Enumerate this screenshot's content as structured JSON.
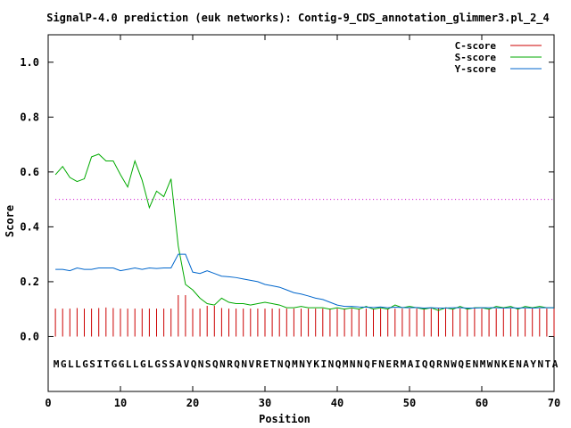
{
  "chart_data": {
    "type": "line",
    "title": "SignalP-4.0 prediction (euk networks): Contig-9_CDS_annotation_glimmer3.pl_2_4",
    "xlabel": "Position",
    "ylabel": "Score",
    "xlim": [
      0,
      70
    ],
    "ylim": [
      -0.2,
      1.1
    ],
    "xticks": [
      0,
      10,
      20,
      30,
      40,
      50,
      60,
      70
    ],
    "yticks": [
      0.0,
      0.2,
      0.4,
      0.6,
      0.8,
      1.0
    ],
    "xtick_labels": [
      "0",
      "10",
      "20",
      "30",
      "40",
      "50",
      "60",
      "70"
    ],
    "ytick_labels": [
      "0.0",
      "0.2",
      "0.4",
      "0.6",
      "0.8",
      "1.0"
    ],
    "threshold": 0.5,
    "threshold_color": "#cc00cc",
    "legend_position": "top-right",
    "sequence": "MGLLGSITGGLLGLGSSAVQNSQNRQNVRETNQMNYKINQMNNQFNERMAIQQRNWQENMWNKENAYNTA",
    "positions": [
      1,
      2,
      3,
      4,
      5,
      6,
      7,
      8,
      9,
      10,
      11,
      12,
      13,
      14,
      15,
      16,
      17,
      18,
      19,
      20,
      21,
      22,
      23,
      24,
      25,
      26,
      27,
      28,
      29,
      30,
      31,
      32,
      33,
      34,
      35,
      36,
      37,
      38,
      39,
      40,
      41,
      42,
      43,
      44,
      45,
      46,
      47,
      48,
      49,
      50,
      51,
      52,
      53,
      54,
      55,
      56,
      57,
      58,
      59,
      60,
      61,
      62,
      63,
      64,
      65,
      66,
      67,
      68,
      69,
      70
    ],
    "series": [
      {
        "name": "C-score",
        "style": "impulses",
        "color": "#cc0000",
        "values": [
          0.102,
          0.102,
          0.102,
          0.104,
          0.102,
          0.102,
          0.104,
          0.106,
          0.104,
          0.102,
          0.102,
          0.102,
          0.102,
          0.102,
          0.102,
          0.102,
          0.102,
          0.151,
          0.151,
          0.102,
          0.102,
          0.112,
          0.112,
          0.104,
          0.102,
          0.102,
          0.102,
          0.102,
          0.102,
          0.102,
          0.102,
          0.102,
          0.102,
          0.102,
          0.102,
          0.102,
          0.102,
          0.102,
          0.102,
          0.102,
          0.102,
          0.102,
          0.102,
          0.102,
          0.102,
          0.102,
          0.102,
          0.102,
          0.102,
          0.102,
          0.102,
          0.102,
          0.102,
          0.102,
          0.102,
          0.102,
          0.102,
          0.102,
          0.102,
          0.102,
          0.102,
          0.102,
          0.102,
          0.102,
          0.102,
          0.102,
          0.102,
          0.102,
          0.102,
          0.102
        ]
      },
      {
        "name": "S-score",
        "style": "line",
        "color": "#00aa00",
        "values": [
          0.59,
          0.62,
          0.58,
          0.565,
          0.575,
          0.655,
          0.665,
          0.64,
          0.64,
          0.59,
          0.545,
          0.64,
          0.57,
          0.47,
          0.53,
          0.51,
          0.575,
          0.33,
          0.19,
          0.17,
          0.14,
          0.12,
          0.115,
          0.14,
          0.125,
          0.12,
          0.12,
          0.115,
          0.12,
          0.125,
          0.12,
          0.115,
          0.105,
          0.105,
          0.11,
          0.105,
          0.105,
          0.105,
          0.1,
          0.105,
          0.1,
          0.105,
          0.1,
          0.11,
          0.1,
          0.105,
          0.1,
          0.115,
          0.105,
          0.11,
          0.105,
          0.1,
          0.105,
          0.095,
          0.105,
          0.1,
          0.11,
          0.1,
          0.105,
          0.105,
          0.1,
          0.11,
          0.105,
          0.11,
          0.1,
          0.11,
          0.105,
          0.11,
          0.105,
          0.105
        ]
      },
      {
        "name": "Y-score",
        "style": "line",
        "color": "#0066cc",
        "values": [
          0.245,
          0.245,
          0.24,
          0.25,
          0.245,
          0.245,
          0.25,
          0.25,
          0.25,
          0.24,
          0.245,
          0.25,
          0.245,
          0.25,
          0.248,
          0.25,
          0.25,
          0.3,
          0.3,
          0.235,
          0.23,
          0.24,
          0.23,
          0.22,
          0.218,
          0.215,
          0.21,
          0.205,
          0.2,
          0.19,
          0.185,
          0.18,
          0.17,
          0.16,
          0.155,
          0.148,
          0.14,
          0.135,
          0.125,
          0.115,
          0.11,
          0.11,
          0.108,
          0.107,
          0.106,
          0.108,
          0.105,
          0.107,
          0.106,
          0.105,
          0.106,
          0.104,
          0.105,
          0.104,
          0.104,
          0.105,
          0.105,
          0.104,
          0.104,
          0.105,
          0.105,
          0.105,
          0.104,
          0.105,
          0.104,
          0.105,
          0.104,
          0.105,
          0.105,
          0.105
        ]
      }
    ]
  }
}
